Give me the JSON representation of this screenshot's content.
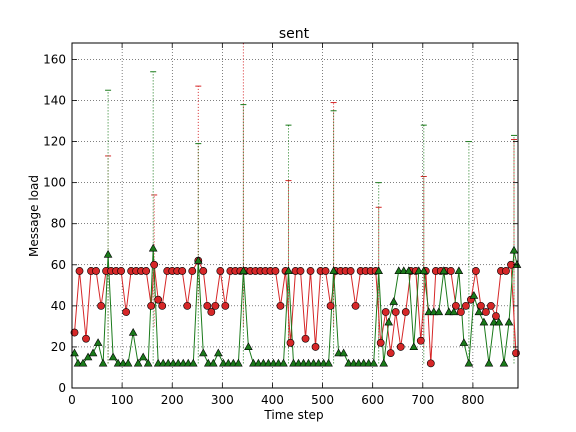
{
  "chart_data": {
    "type": "line",
    "title": "sent",
    "xlabel": "Time step",
    "ylabel": "Message load",
    "xlim": [
      0,
      890
    ],
    "ylim": [
      0,
      168
    ],
    "xticks": [
      0,
      100,
      200,
      300,
      400,
      500,
      600,
      700,
      800
    ],
    "yticks": [
      0,
      20,
      40,
      60,
      80,
      100,
      120,
      140,
      160
    ],
    "grid": true,
    "colors": {
      "red": "#d62728",
      "green": "#1a7a1a"
    },
    "series": [
      {
        "color": "red",
        "marker": "circle",
        "points": [
          [
            5,
            27
          ],
          [
            15,
            57
          ],
          [
            28,
            24
          ],
          [
            38,
            57
          ],
          [
            48,
            57
          ],
          [
            58,
            40
          ],
          [
            68,
            57
          ],
          [
            78,
            57
          ],
          [
            88,
            57
          ],
          [
            98,
            57
          ],
          [
            108,
            37
          ],
          [
            118,
            57
          ],
          [
            128,
            57
          ],
          [
            138,
            57
          ],
          [
            148,
            57
          ],
          [
            158,
            40
          ],
          [
            164,
            60
          ],
          [
            172,
            43
          ],
          [
            180,
            40
          ],
          [
            190,
            57
          ],
          [
            200,
            57
          ],
          [
            210,
            57
          ],
          [
            220,
            57
          ],
          [
            230,
            40
          ],
          [
            240,
            57
          ],
          [
            252,
            62
          ],
          [
            262,
            57
          ],
          [
            270,
            40
          ],
          [
            278,
            37
          ],
          [
            286,
            40
          ],
          [
            296,
            57
          ],
          [
            306,
            40
          ],
          [
            316,
            57
          ],
          [
            326,
            57
          ],
          [
            336,
            57
          ],
          [
            346,
            57
          ],
          [
            356,
            57
          ],
          [
            366,
            57
          ],
          [
            376,
            57
          ],
          [
            386,
            57
          ],
          [
            396,
            57
          ],
          [
            406,
            57
          ],
          [
            416,
            40
          ],
          [
            426,
            57
          ],
          [
            436,
            22
          ],
          [
            446,
            57
          ],
          [
            456,
            57
          ],
          [
            466,
            24
          ],
          [
            476,
            57
          ],
          [
            486,
            20
          ],
          [
            496,
            57
          ],
          [
            506,
            57
          ],
          [
            516,
            40
          ],
          [
            526,
            57
          ],
          [
            536,
            57
          ],
          [
            546,
            57
          ],
          [
            556,
            57
          ],
          [
            566,
            40
          ],
          [
            576,
            57
          ],
          [
            586,
            57
          ],
          [
            596,
            57
          ],
          [
            606,
            57
          ],
          [
            616,
            22
          ],
          [
            626,
            37
          ],
          [
            636,
            17
          ],
          [
            646,
            37
          ],
          [
            656,
            20
          ],
          [
            666,
            37
          ],
          [
            676,
            57
          ],
          [
            686,
            57
          ],
          [
            696,
            23
          ],
          [
            706,
            57
          ],
          [
            716,
            12
          ],
          [
            726,
            57
          ],
          [
            736,
            57
          ],
          [
            746,
            57
          ],
          [
            756,
            57
          ],
          [
            766,
            40
          ],
          [
            776,
            37
          ],
          [
            786,
            40
          ],
          [
            796,
            43
          ],
          [
            806,
            57
          ],
          [
            816,
            40
          ],
          [
            826,
            37
          ],
          [
            836,
            40
          ],
          [
            846,
            35
          ],
          [
            856,
            57
          ],
          [
            866,
            57
          ],
          [
            876,
            60
          ],
          [
            886,
            17
          ]
        ]
      },
      {
        "color": "green",
        "marker": "triangle",
        "points": [
          [
            5,
            17
          ],
          [
            12,
            12
          ],
          [
            22,
            12
          ],
          [
            32,
            15
          ],
          [
            42,
            17
          ],
          [
            52,
            22
          ],
          [
            62,
            12
          ],
          [
            72,
            65
          ],
          [
            82,
            15
          ],
          [
            92,
            12
          ],
          [
            102,
            12
          ],
          [
            112,
            12
          ],
          [
            122,
            27
          ],
          [
            132,
            12
          ],
          [
            142,
            15
          ],
          [
            152,
            12
          ],
          [
            162,
            68
          ],
          [
            172,
            12
          ],
          [
            182,
            12
          ],
          [
            192,
            12
          ],
          [
            202,
            12
          ],
          [
            212,
            12
          ],
          [
            222,
            12
          ],
          [
            232,
            12
          ],
          [
            242,
            12
          ],
          [
            252,
            62
          ],
          [
            262,
            17
          ],
          [
            272,
            12
          ],
          [
            282,
            12
          ],
          [
            292,
            17
          ],
          [
            302,
            12
          ],
          [
            312,
            12
          ],
          [
            322,
            12
          ],
          [
            332,
            12
          ],
          [
            342,
            57
          ],
          [
            352,
            20
          ],
          [
            362,
            12
          ],
          [
            372,
            12
          ],
          [
            382,
            12
          ],
          [
            392,
            12
          ],
          [
            402,
            12
          ],
          [
            412,
            12
          ],
          [
            422,
            12
          ],
          [
            432,
            57
          ],
          [
            442,
            12
          ],
          [
            452,
            12
          ],
          [
            462,
            12
          ],
          [
            472,
            12
          ],
          [
            482,
            12
          ],
          [
            492,
            12
          ],
          [
            502,
            12
          ],
          [
            512,
            12
          ],
          [
            522,
            57
          ],
          [
            532,
            17
          ],
          [
            542,
            17
          ],
          [
            552,
            12
          ],
          [
            562,
            12
          ],
          [
            572,
            12
          ],
          [
            582,
            12
          ],
          [
            592,
            12
          ],
          [
            602,
            12
          ],
          [
            612,
            57
          ],
          [
            622,
            12
          ],
          [
            632,
            32
          ],
          [
            642,
            42
          ],
          [
            652,
            57
          ],
          [
            662,
            57
          ],
          [
            672,
            57
          ],
          [
            682,
            20
          ],
          [
            692,
            57
          ],
          [
            702,
            57
          ],
          [
            712,
            37
          ],
          [
            722,
            37
          ],
          [
            732,
            37
          ],
          [
            742,
            57
          ],
          [
            752,
            37
          ],
          [
            762,
            37
          ],
          [
            772,
            57
          ],
          [
            782,
            22
          ],
          [
            792,
            12
          ],
          [
            802,
            45
          ],
          [
            812,
            37
          ],
          [
            822,
            32
          ],
          [
            832,
            12
          ],
          [
            842,
            32
          ],
          [
            852,
            32
          ],
          [
            862,
            12
          ],
          [
            872,
            32
          ],
          [
            882,
            67
          ],
          [
            888,
            60
          ]
        ]
      }
    ],
    "error_bars": [
      {
        "color": "red",
        "x": 72,
        "high": 113,
        "low": 12
      },
      {
        "color": "red",
        "x": 164,
        "high": 94,
        "low": 30
      },
      {
        "color": "red",
        "x": 252,
        "high": 147,
        "low": 40
      },
      {
        "color": "red",
        "x": 342,
        "high": 168,
        "low": 30
      },
      {
        "color": "red",
        "x": 432,
        "high": 101,
        "low": 20
      },
      {
        "color": "red",
        "x": 522,
        "high": 139,
        "low": 30
      },
      {
        "color": "red",
        "x": 612,
        "high": 88,
        "low": 20
      },
      {
        "color": "red",
        "x": 702,
        "high": 103,
        "low": 20
      },
      {
        "color": "red",
        "x": 882,
        "high": 121,
        "low": 20
      },
      {
        "color": "green",
        "x": 72,
        "high": 145,
        "low": 12
      },
      {
        "color": "green",
        "x": 162,
        "high": 154,
        "low": 12
      },
      {
        "color": "green",
        "x": 252,
        "high": 119,
        "low": 12
      },
      {
        "color": "green",
        "x": 342,
        "high": 138,
        "low": 12
      },
      {
        "color": "green",
        "x": 432,
        "high": 128,
        "low": 12
      },
      {
        "color": "green",
        "x": 522,
        "high": 135,
        "low": 12
      },
      {
        "color": "green",
        "x": 612,
        "high": 100,
        "low": 12
      },
      {
        "color": "green",
        "x": 702,
        "high": 128,
        "low": 12
      },
      {
        "color": "green",
        "x": 792,
        "high": 120,
        "low": 12
      },
      {
        "color": "green",
        "x": 882,
        "high": 123,
        "low": 12
      }
    ]
  }
}
